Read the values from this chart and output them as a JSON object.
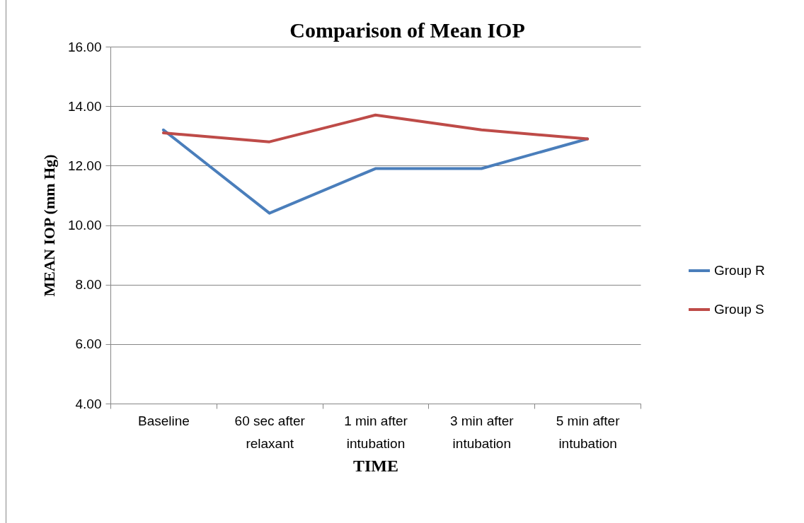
{
  "chart_data": {
    "type": "line",
    "title": "Comparison of Mean IOP",
    "xlabel": "TIME",
    "ylabel": "MEAN IOP (mm Hg)",
    "categories": [
      "Baseline",
      "60 sec after relaxant",
      "1 min after intubation",
      "3 min after intubation",
      "5 min after intubation"
    ],
    "series": [
      {
        "name": "Group R",
        "color": "#4a7ebb",
        "values": [
          13.2,
          10.4,
          11.9,
          11.9,
          12.9
        ]
      },
      {
        "name": "Group S",
        "color": "#be4b48",
        "values": [
          13.1,
          12.8,
          13.7,
          13.2,
          12.9
        ]
      }
    ],
    "ylim": [
      4,
      16
    ],
    "yticks": [
      {
        "value": 4,
        "label": "4.00"
      },
      {
        "value": 6,
        "label": "6.00"
      },
      {
        "value": 8,
        "label": "8.00"
      },
      {
        "value": 10,
        "label": "10.00"
      },
      {
        "value": 12,
        "label": "12.00"
      },
      {
        "value": 14,
        "label": "14.00"
      },
      {
        "value": 16,
        "label": "16.00"
      }
    ],
    "grid": "y",
    "legend": "right",
    "line_style": "solid"
  }
}
